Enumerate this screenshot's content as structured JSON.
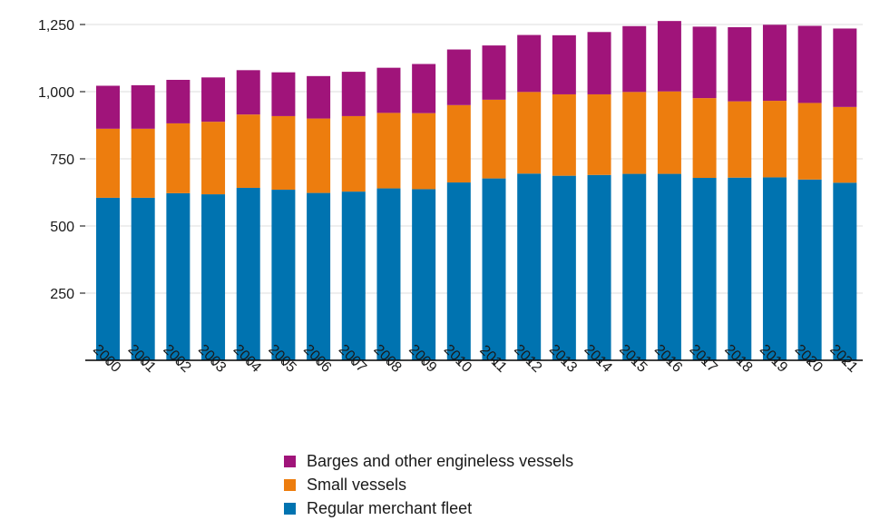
{
  "chart_data": {
    "type": "bar",
    "stacked": true,
    "categories": [
      "2000",
      "2001",
      "2002",
      "2003",
      "2004",
      "2005",
      "2006",
      "2007",
      "2008",
      "2009",
      "2010",
      "2011",
      "2012",
      "2013",
      "2014",
      "2015",
      "2016",
      "2017",
      "2018",
      "2019",
      "2020",
      "2021"
    ],
    "series": [
      {
        "name": "Regular merchant fleet",
        "color": "#0073b0",
        "values": [
          605,
          605,
          622,
          618,
          642,
          635,
          623,
          628,
          640,
          637,
          662,
          677,
          695,
          687,
          690,
          694,
          694,
          679,
          680,
          681,
          673,
          661
        ]
      },
      {
        "name": "Small vessels",
        "color": "#ed7d0e",
        "values": [
          257,
          257,
          260,
          270,
          273,
          274,
          277,
          281,
          281,
          283,
          288,
          293,
          304,
          303,
          300,
          305,
          307,
          297,
          284,
          285,
          285,
          282
        ]
      },
      {
        "name": "Barges and other engineless vessels",
        "color": "#a0147a",
        "values": [
          160,
          162,
          162,
          165,
          165,
          163,
          158,
          165,
          168,
          183,
          207,
          202,
          212,
          220,
          232,
          245,
          262,
          266,
          276,
          283,
          287,
          292
        ]
      }
    ],
    "yticks": [
      250,
      500,
      750,
      1000,
      1250
    ],
    "ytick_labels": [
      "250",
      "500",
      "750",
      "1,000",
      "1,250"
    ],
    "ylim": [
      0,
      1250
    ],
    "grid": true,
    "legend_position": "bottom",
    "legend_order": [
      2,
      1,
      0
    ]
  }
}
